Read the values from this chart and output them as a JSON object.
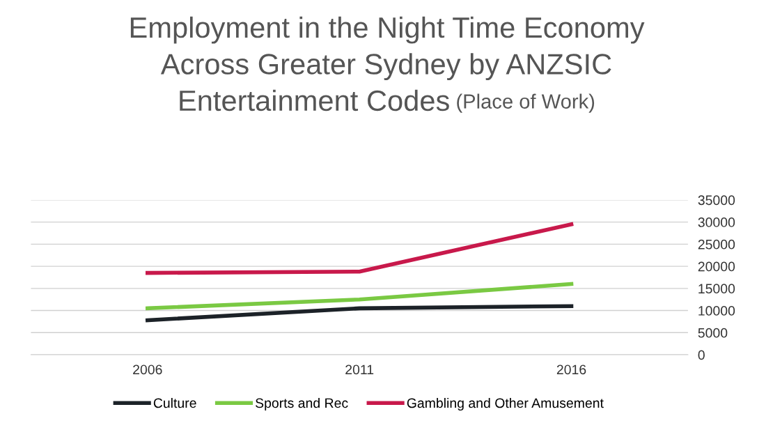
{
  "chart_data": {
    "type": "line",
    "title": "Employment in the Night Time Economy\nAcross Greater Sydney by ANZSIC\nEntertainment Codes",
    "subtitle": "(Place of Work)",
    "categories": [
      "2006",
      "2011",
      "2016"
    ],
    "series": [
      {
        "name": "Culture",
        "color": "#1c2228",
        "values": [
          7800,
          10500,
          11000
        ]
      },
      {
        "name": "Sports and Rec",
        "color": "#7ac943",
        "values": [
          10500,
          12500,
          16000
        ]
      },
      {
        "name": "Gambling and Other Amusement",
        "color": "#c8194b",
        "values": [
          18500,
          18800,
          29500
        ]
      }
    ],
    "ylim": [
      0,
      35000
    ],
    "yticks": [
      0,
      5000,
      10000,
      15000,
      20000,
      25000,
      30000,
      35000
    ],
    "grid": "y",
    "legend": "bottom",
    "marker": "none",
    "line_style": "solid"
  }
}
